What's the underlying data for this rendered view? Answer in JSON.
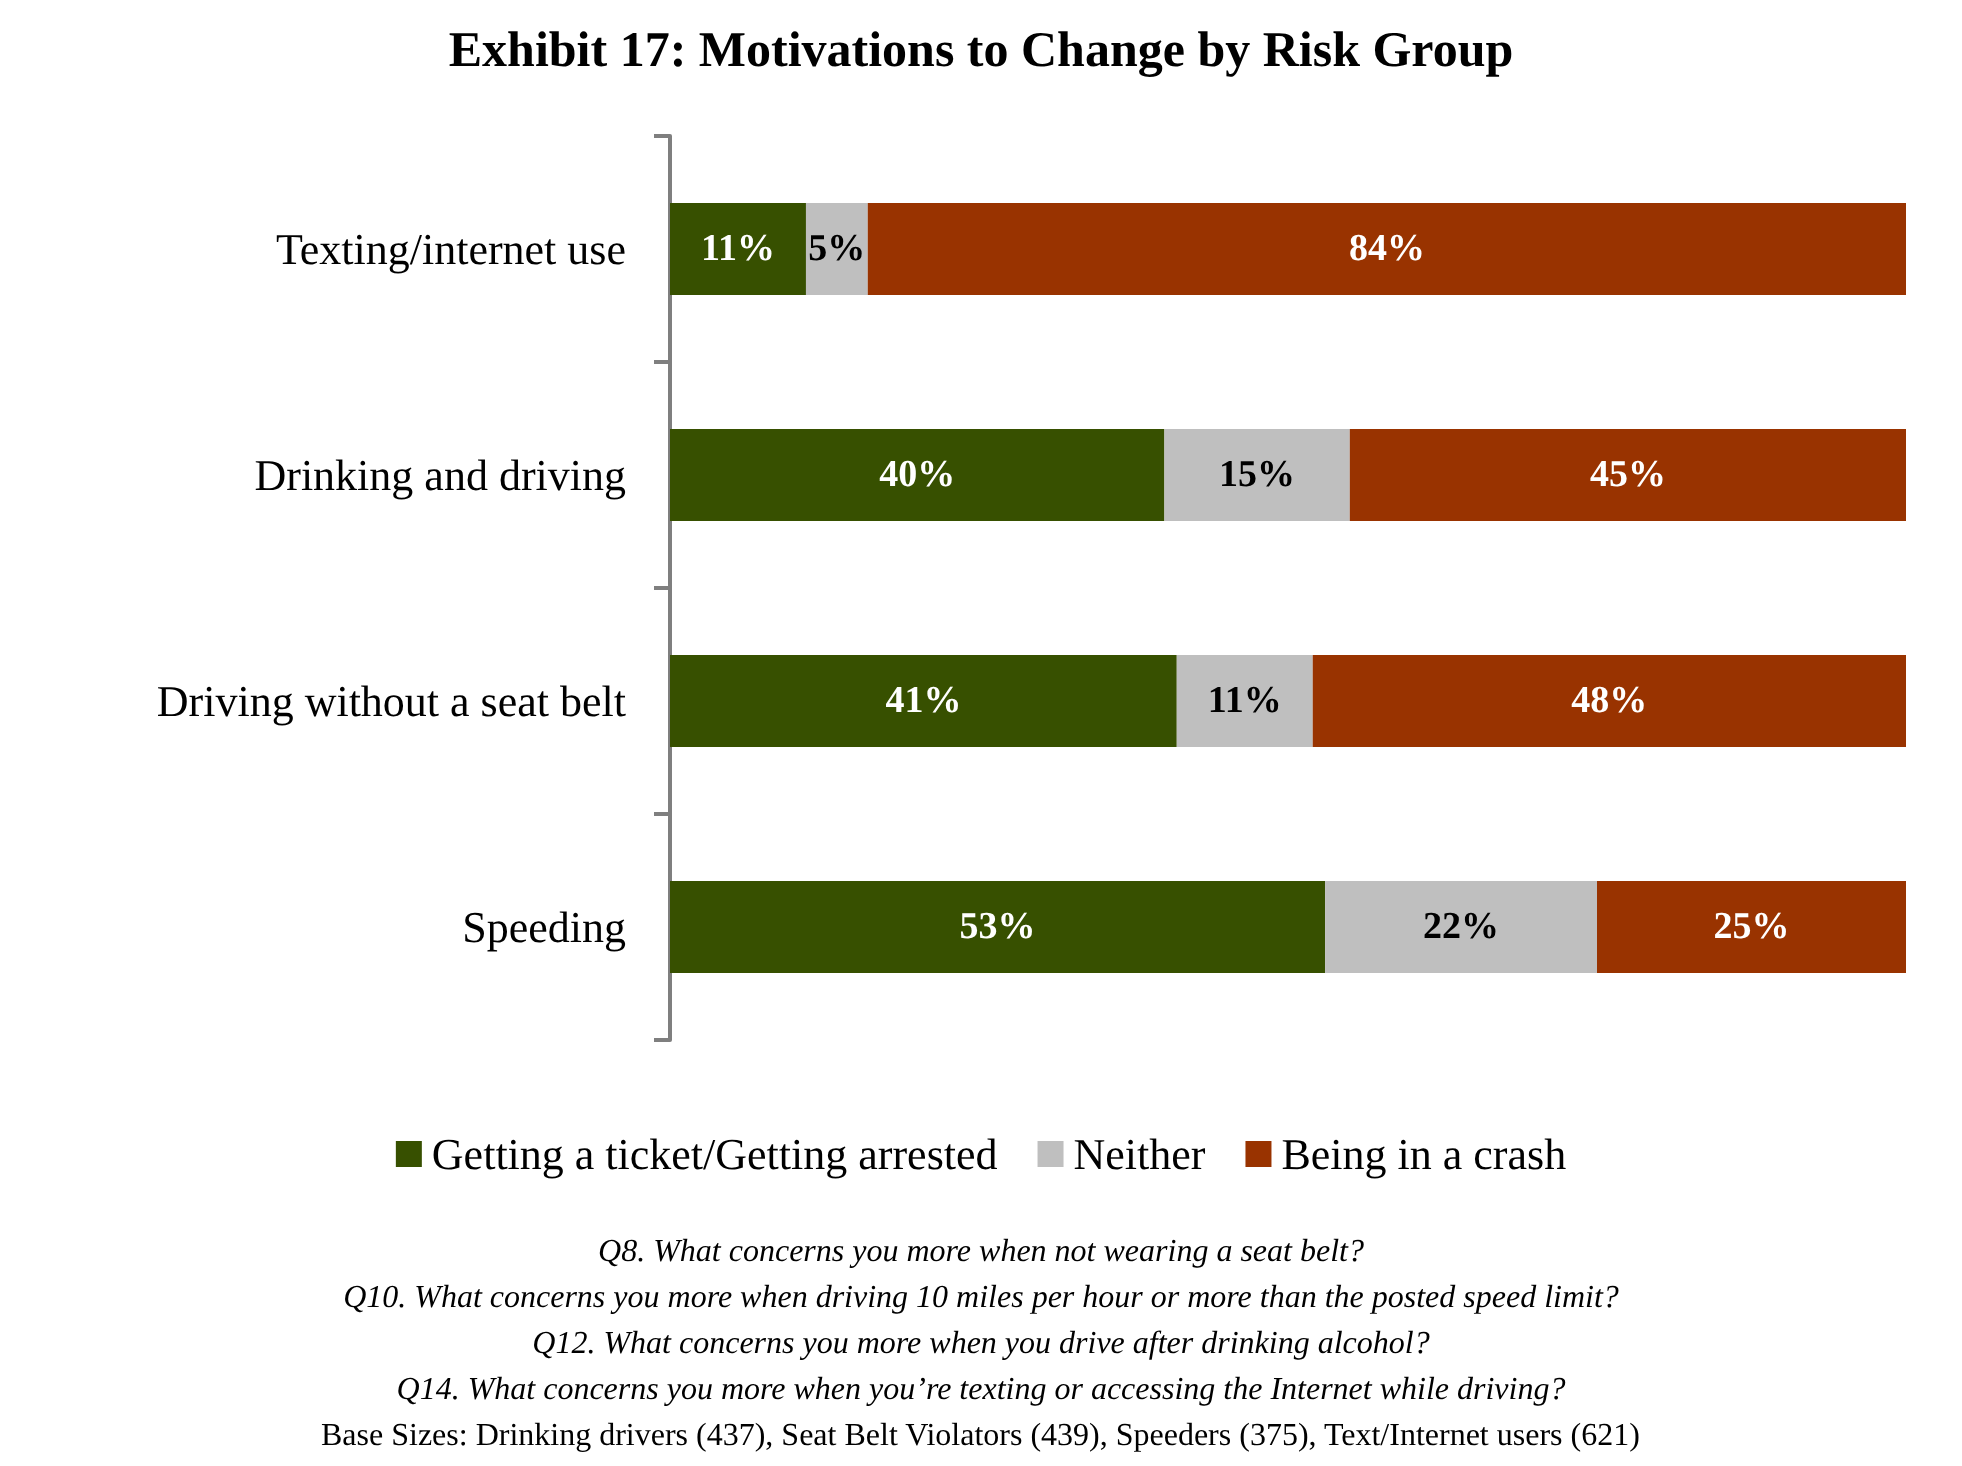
{
  "chart_data": {
    "type": "bar",
    "title": "Exhibit 17: Motivations to Change by Risk Group",
    "orientation": "horizontal",
    "stacked": true,
    "categories": [
      "Texting/internet use",
      "Drinking and driving",
      "Driving without a seat belt",
      "Speeding"
    ],
    "series": [
      {
        "name": "Getting a ticket/Getting arrested",
        "color": "#375000",
        "values": [
          11,
          40,
          41,
          53
        ],
        "value_labels": [
          "11%",
          "40%",
          "41%",
          "53%"
        ]
      },
      {
        "name": "Neither",
        "color": "#bfbfbf",
        "values": [
          5,
          15,
          11,
          22
        ],
        "value_labels": [
          "5%",
          "15%",
          "11%",
          "22%"
        ]
      },
      {
        "name": "Being in a crash",
        "color": "#993300",
        "values": [
          84,
          45,
          48,
          25
        ],
        "value_labels": [
          "84%",
          "45%",
          "48%",
          "25%"
        ]
      }
    ],
    "tick_labels": "y",
    "grid": false,
    "legend": "bottom",
    "annotations": [
      "Q8. What concerns you more when not wearing a seat belt?",
      "Q10. What concerns you more when driving 10 miles per hour or more than the posted speed limit?",
      "Q12. What concerns you more when you drive after drinking alcohol?",
      "Q14. What concerns you more when you’re texting or accessing the Internet while driving?",
      "Base Sizes: Drinking drivers (437), Seat Belt Violators (439), Speeders (375), Text/Internet users (621)"
    ]
  }
}
